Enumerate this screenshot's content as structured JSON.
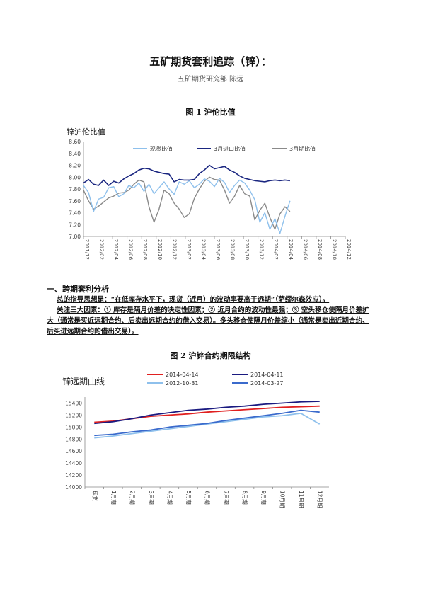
{
  "header": {
    "title": "五矿期货套利追踪（锌）：",
    "author": "五矿期货研究部  陈远"
  },
  "figure1": {
    "caption": "图 1    沪伦比值",
    "chart_title": "锌沪伦比值"
  },
  "section": {
    "heading": "一、跨期套利分析",
    "para1": "总的指导思想是：“在低库存水平下，现货（近月）的波动率要高于远期”（萨缪尔森效应）。",
    "para2": "关注三大因素：① 库存是隔月价差的决定性因素；② 近月合约的波动性最强；③ 空头移仓使隔月价差扩大（通常是买近远期合约、后卖出远期合约的借入交易）。多头移仓使隔月价差缩小（通常是卖出近期合约、后买进远期合约的借出交易）。"
  },
  "figure2": {
    "caption": "图 2    沪锌合约期限结构",
    "chart_title": "锌远期曲线"
  },
  "chart_data": [
    {
      "type": "line",
      "title": "锌沪伦比值",
      "ylim": [
        7.0,
        8.6
      ],
      "yticks": [
        "7.00",
        "7.20",
        "7.40",
        "7.60",
        "7.80",
        "8.00",
        "8.20",
        "8.40",
        "8.60"
      ],
      "xticks": [
        "2011/12",
        "2012/02",
        "2012/04",
        "2012/06",
        "2012/08",
        "2012/10",
        "2012/12",
        "2013/02",
        "2013/04",
        "2013/06",
        "2013/08",
        "2013/10",
        "2013/12",
        "2014/02",
        "2014/04",
        "2014/06",
        "2014/08",
        "2014/10",
        "2014/12"
      ],
      "legend": "top",
      "colors": {
        "spot": "#8ec0ec",
        "import": "#1a2680",
        "three_month": "#8a8a8a"
      },
      "series": [
        {
          "name": "现货比值",
          "values": [
            7.86,
            7.74,
            7.42,
            7.63,
            7.66,
            7.82,
            7.84,
            7.67,
            7.72,
            7.86,
            7.82,
            7.9,
            7.76,
            7.88,
            7.72,
            7.82,
            7.92,
            7.8,
            7.71,
            7.92,
            7.88,
            7.94,
            7.82,
            7.88,
            7.97,
            7.93,
            7.84,
            7.98,
            7.91,
            7.74,
            7.86,
            7.95,
            7.9,
            7.78,
            7.62,
            7.24,
            7.4,
            7.12,
            7.3,
            7.05,
            7.34,
            7.6
          ]
        },
        {
          "name": "3月进口比值",
          "values": [
            7.9,
            7.96,
            7.88,
            7.86,
            7.95,
            7.86,
            7.93,
            7.9,
            7.97,
            8.02,
            8.06,
            8.12,
            8.15,
            8.14,
            8.1,
            8.08,
            8.06,
            8.05,
            7.92,
            7.96,
            7.95,
            7.95,
            7.96,
            8.06,
            8.12,
            8.2,
            8.14,
            8.16,
            8.18,
            8.12,
            8.08,
            8.02,
            7.98,
            7.96,
            7.94,
            7.93,
            7.92,
            7.94,
            7.95,
            7.94,
            7.95,
            7.94
          ]
        },
        {
          "name": "3月期比值",
          "values": [
            7.78,
            7.6,
            7.46,
            7.51,
            7.58,
            7.65,
            7.68,
            7.73,
            7.74,
            7.78,
            7.88,
            7.95,
            7.92,
            7.5,
            7.24,
            7.46,
            7.78,
            7.72,
            7.56,
            7.46,
            7.32,
            7.38,
            7.64,
            7.8,
            7.93,
            8.0,
            7.96,
            7.95,
            7.78,
            7.56,
            7.68,
            7.86,
            7.72,
            7.68,
            7.28,
            7.44,
            7.56,
            7.32,
            7.12,
            7.38,
            7.5,
            7.42
          ]
        }
      ]
    },
    {
      "type": "line",
      "title": "锌远期曲线",
      "ylim": [
        14000,
        15500
      ],
      "yticks": [
        "14000",
        "14200",
        "14400",
        "14600",
        "14800",
        "15000",
        "15200",
        "15400"
      ],
      "categories": [
        "现货",
        "1月期",
        "2月期",
        "3月期",
        "4月期",
        "5月期",
        "6月期",
        "7月期",
        "8月期",
        "9月期",
        "10月期",
        "11月期",
        "12月期"
      ],
      "legend": "top",
      "series": [
        {
          "name": "2014-04-14",
          "color": "#e02020",
          "values": [
            15080,
            15100,
            15140,
            15180,
            15200,
            15220,
            15250,
            15270,
            15290,
            15310,
            15330,
            15340,
            15350
          ]
        },
        {
          "name": "2014-04-11",
          "color": "#1a1a80",
          "values": [
            15060,
            15090,
            15140,
            15200,
            15240,
            15280,
            15300,
            15330,
            15350,
            15380,
            15400,
            15420,
            15430
          ]
        },
        {
          "name": "2012-10-31",
          "color": "#8ec0ec",
          "values": [
            14820,
            14850,
            14890,
            14930,
            14970,
            15010,
            15050,
            15090,
            15130,
            15170,
            15190,
            15230,
            15050
          ]
        },
        {
          "name": "2014-03-27",
          "color": "#3a6acc",
          "values": [
            14860,
            14880,
            14920,
            14950,
            15000,
            15030,
            15060,
            15110,
            15150,
            15190,
            15230,
            15280,
            15250
          ]
        }
      ]
    }
  ]
}
